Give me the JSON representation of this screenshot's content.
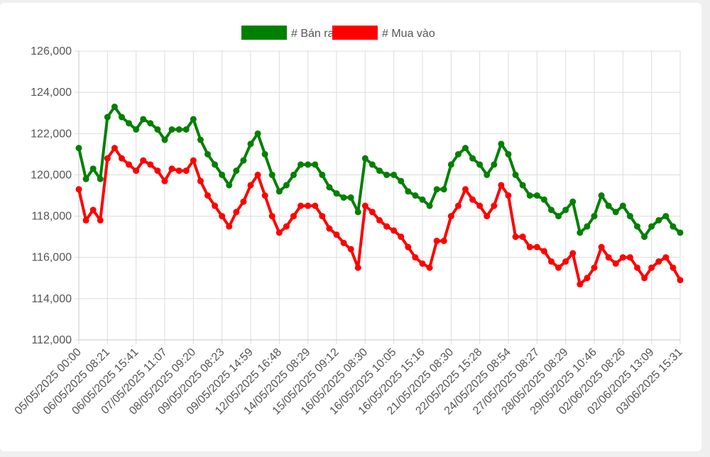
{
  "chart_data": {
    "type": "line",
    "title": "",
    "xlabel": "",
    "ylabel": "",
    "ylim": [
      112000,
      126000
    ],
    "yticks": [
      112000,
      114000,
      116000,
      118000,
      120000,
      122000,
      124000,
      126000
    ],
    "ytick_labels": [
      "112,000",
      "114,000",
      "116,000",
      "118,000",
      "120,000",
      "122,000",
      "124,000",
      "126,000"
    ],
    "x_tick_labels": [
      "05/05/2025 00:00",
      "06/05/2025 08:21",
      "06/05/2025 15:41",
      "07/05/2025 11:07",
      "08/05/2025 09:20",
      "09/05/2025 08:23",
      "09/05/2025 14:59",
      "12/05/2025 16:48",
      "14/05/2025 08:29",
      "15/05/2025 09:12",
      "16/05/2025 08:30",
      "16/05/2025 10:05",
      "16/05/2025 15:16",
      "21/05/2025 08:30",
      "22/05/2025 15:28",
      "24/05/2025 08:54",
      "27/05/2025 08:27",
      "28/05/2025 08:29",
      "29/05/2025 10:46",
      "02/06/2025 08:26",
      "02/06/2025 13:09",
      "03/06/2025 15:31"
    ],
    "grid": true,
    "legend_position": "top",
    "series": [
      {
        "name": "# Bán ra",
        "color": "#008000",
        "values": [
          121300,
          119800,
          120300,
          119800,
          122800,
          123300,
          122800,
          122500,
          122200,
          122700,
          122500,
          122200,
          121700,
          122200,
          122200,
          122200,
          122700,
          121700,
          121000,
          120500,
          120000,
          119500,
          120200,
          120700,
          121500,
          122000,
          121000,
          120000,
          119200,
          119500,
          120000,
          120500,
          120500,
          120500,
          120000,
          119400,
          119100,
          118900,
          118900,
          118200,
          120800,
          120500,
          120200,
          120000,
          120000,
          119700,
          119200,
          119000,
          118800,
          118500,
          119300,
          119300,
          120500,
          121000,
          121300,
          120800,
          120500,
          120000,
          120500,
          121500,
          121000,
          120000,
          119500,
          119000,
          119000,
          118800,
          118300,
          118000,
          118300,
          118700,
          117200,
          117500,
          118000,
          119000,
          118500,
          118200,
          118500,
          118000,
          117500,
          117000,
          117500,
          117800,
          118000,
          117500,
          117200
        ]
      },
      {
        "name": "# Mua vào",
        "color": "#ff0000",
        "values": [
          119300,
          117800,
          118300,
          117800,
          120800,
          121300,
          120800,
          120500,
          120200,
          120700,
          120500,
          120200,
          119700,
          120300,
          120200,
          120200,
          120700,
          119700,
          119000,
          118500,
          118000,
          117500,
          118200,
          118700,
          119500,
          120000,
          119000,
          118000,
          117200,
          117500,
          118000,
          118500,
          118500,
          118500,
          118000,
          117400,
          117100,
          116700,
          116400,
          115500,
          118500,
          118200,
          117800,
          117500,
          117300,
          117000,
          116500,
          116000,
          115700,
          115500,
          116800,
          116800,
          118000,
          118500,
          119300,
          118800,
          118500,
          118000,
          118500,
          119500,
          119000,
          117000,
          117000,
          116500,
          116500,
          116300,
          115800,
          115500,
          115800,
          116200,
          114700,
          115000,
          115500,
          116500,
          116000,
          115700,
          116000,
          116000,
          115500,
          115000,
          115500,
          115800,
          116000,
          115500,
          114900
        ]
      }
    ]
  }
}
